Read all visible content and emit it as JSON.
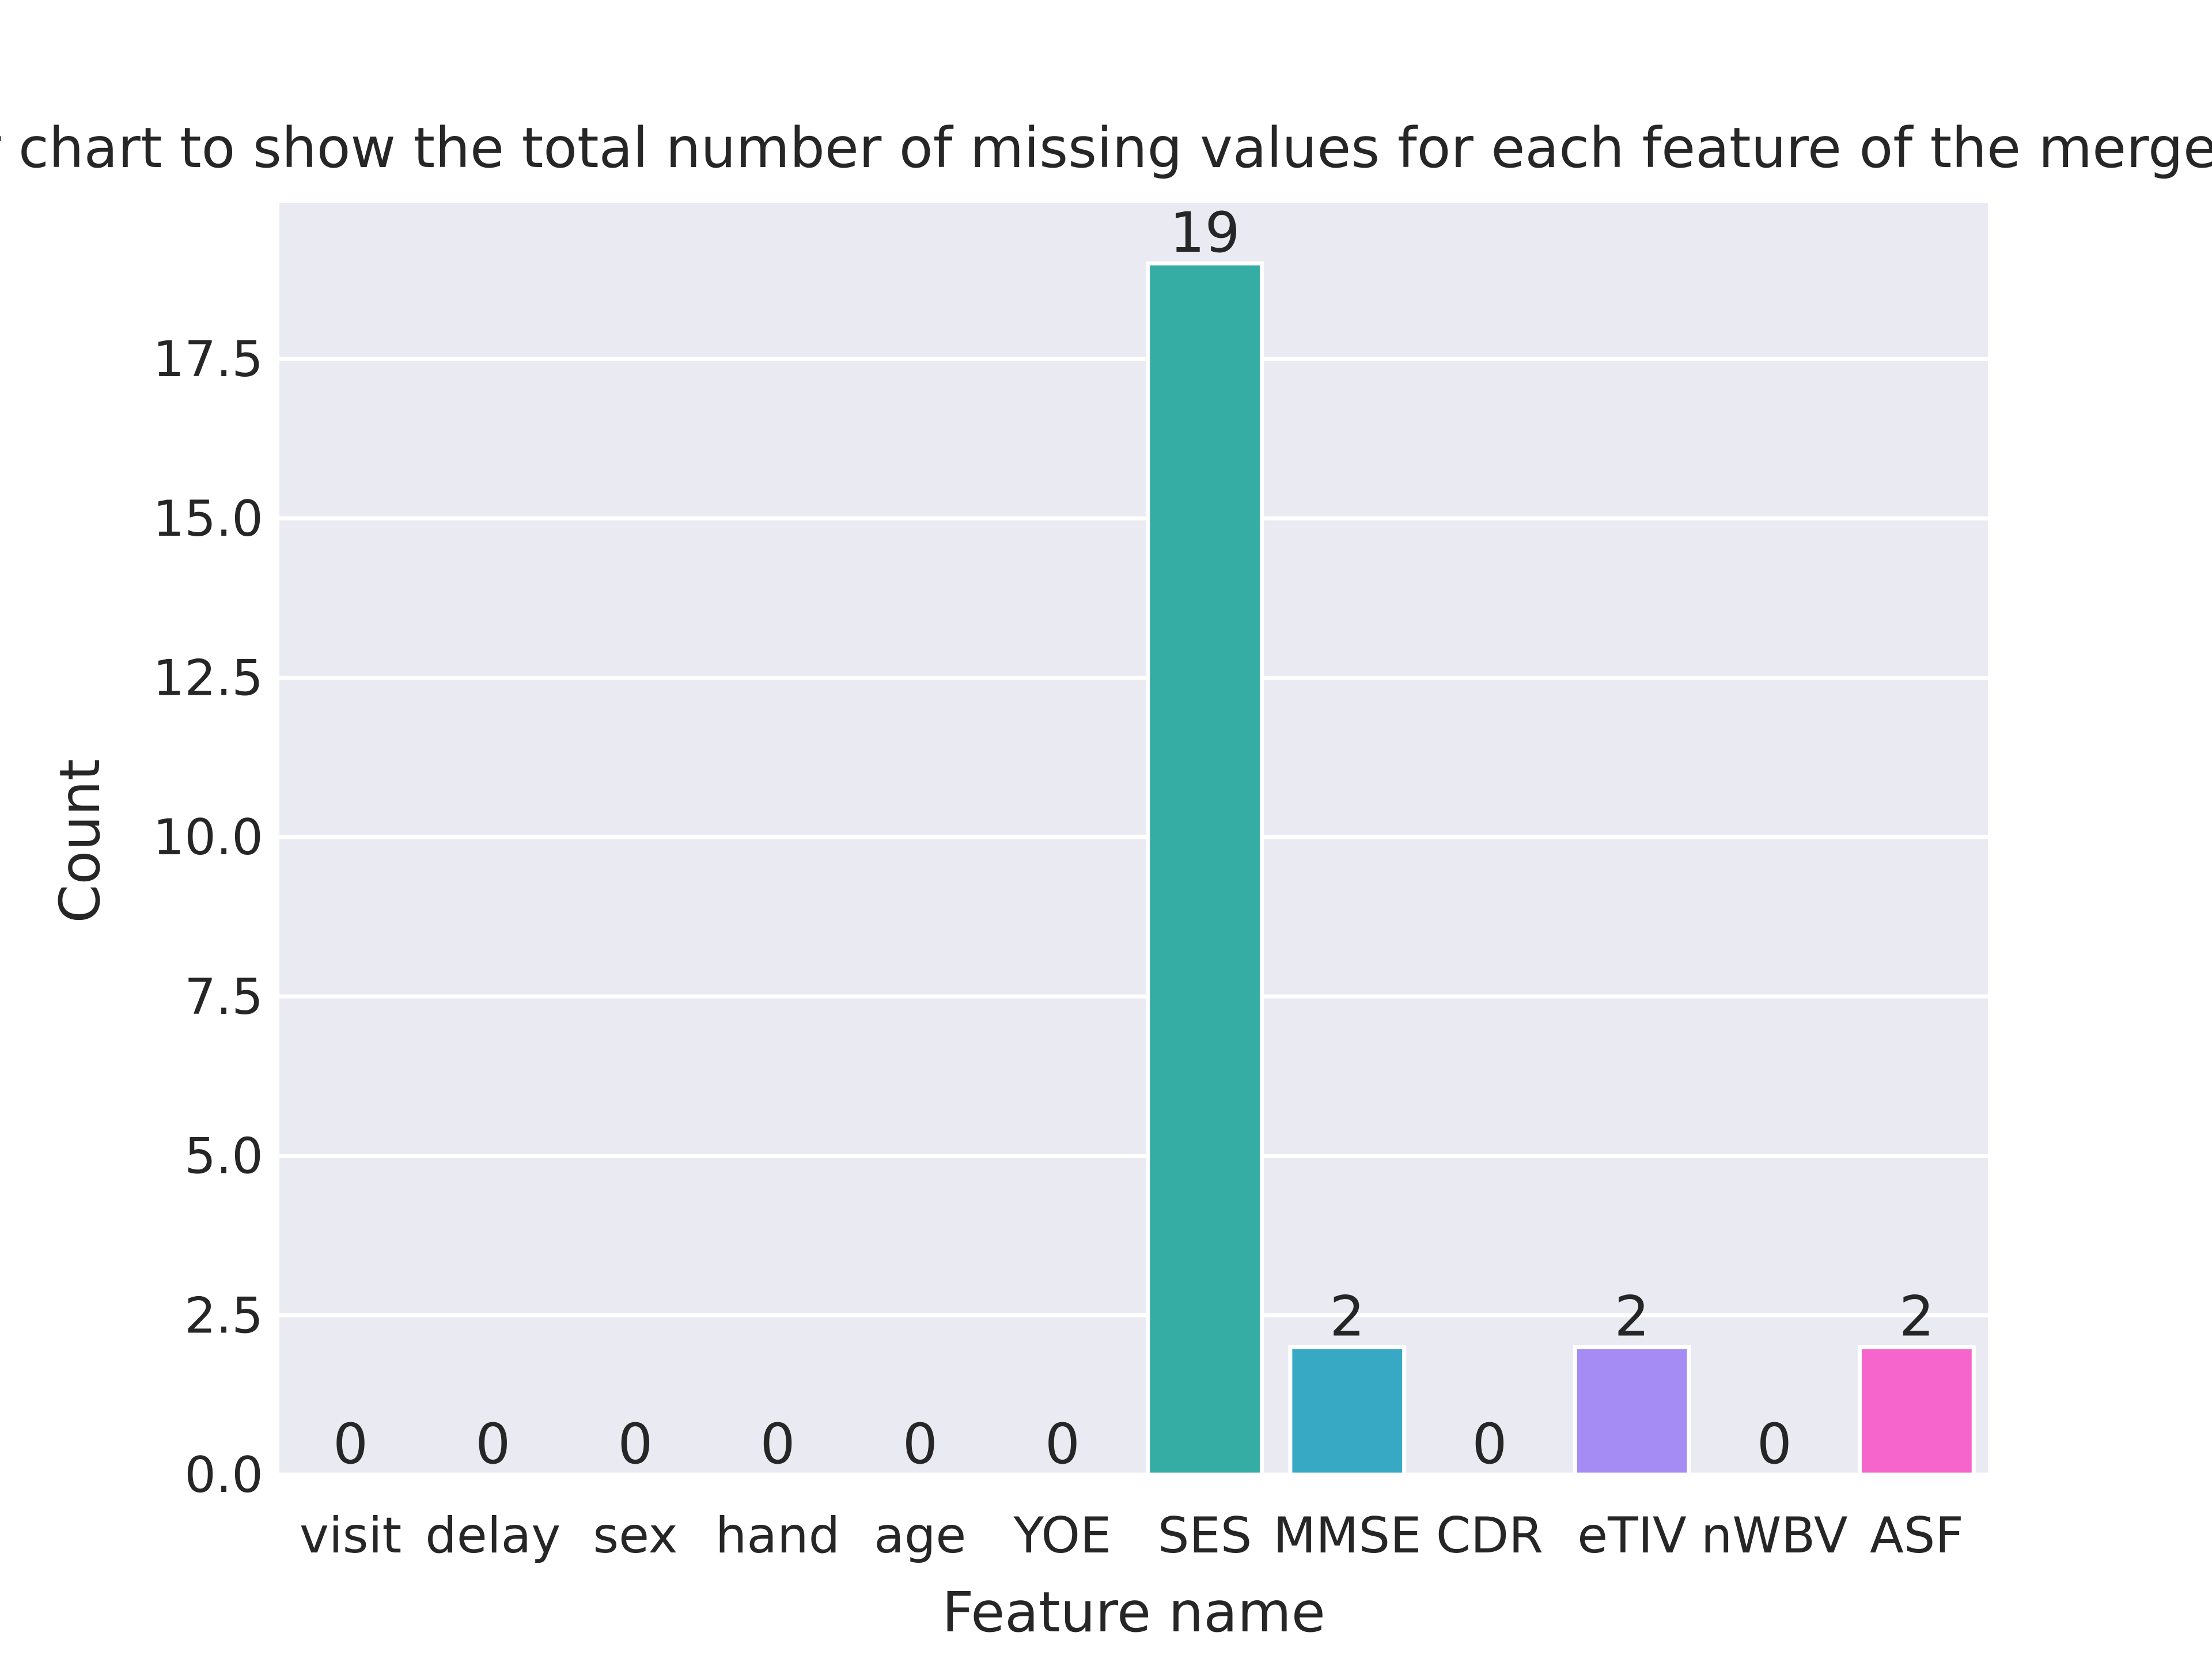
{
  "chart_data": {
    "type": "bar",
    "title": "bar chart to show the total number of missing values for each feature of the merged dat",
    "xlabel": "Feature name",
    "ylabel": "Count",
    "categories": [
      "visit",
      "delay",
      "sex",
      "hand",
      "age",
      "YOE",
      "SES",
      "MMSE",
      "CDR",
      "eTIV",
      "nWBV",
      "ASF"
    ],
    "values": [
      0,
      0,
      0,
      0,
      0,
      0,
      19,
      2,
      0,
      2,
      0,
      2
    ],
    "data_labels": [
      "0",
      "0",
      "0",
      "0",
      "0",
      "0",
      "19",
      "2",
      "0",
      "2",
      "0",
      "2"
    ],
    "colors": [
      "#f77189",
      "#dc8932",
      "#ae9d31",
      "#77ab31",
      "#33b07a",
      "#36ada4",
      "#36ada4",
      "#38a9c5",
      "#6e9bf4",
      "#a48cf4",
      "#cc7af4",
      "#f565cc"
    ],
    "ylim": [
      0,
      19.95
    ],
    "yticks": [
      0.0,
      2.5,
      5.0,
      7.5,
      10.0,
      12.5,
      15.0,
      17.5
    ],
    "ytick_labels": [
      "0.0",
      "2.5",
      "5.0",
      "7.5",
      "10.0",
      "12.5",
      "15.0",
      "17.5"
    ],
    "grid": true,
    "background": "#eaeaf2"
  }
}
